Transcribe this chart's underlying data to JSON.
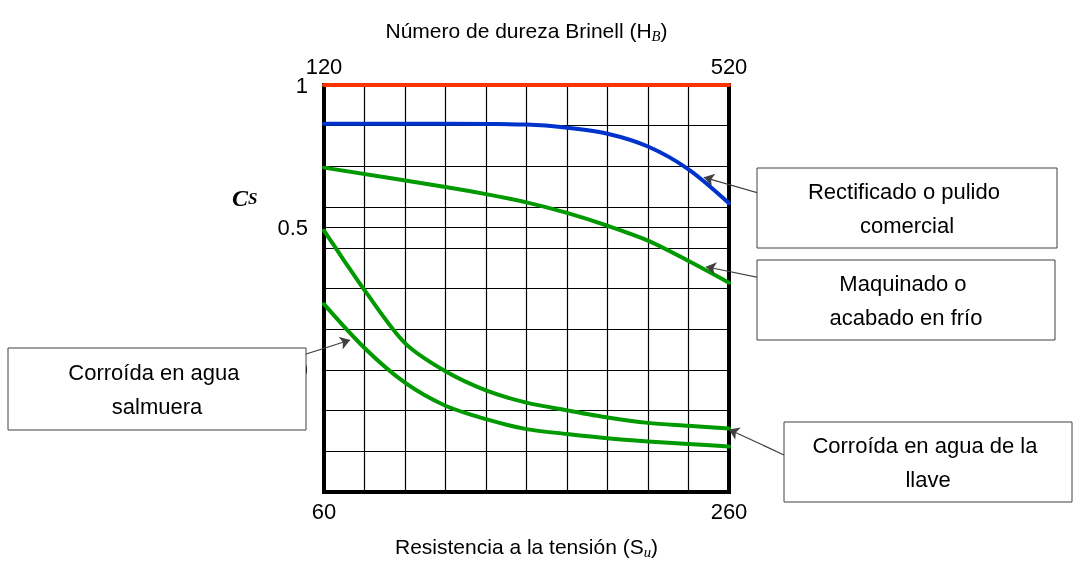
{
  "chart_data": {
    "type": "line",
    "xlabel": "Resistencia a la tensión (S$_{u}$)",
    "x2label": "Número de dureza Brinell (H$_{B}$)",
    "ylabel": "C$_{S}$",
    "xlim": [
      60,
      260
    ],
    "xticks": [
      60,
      {
        "value": 80,
        "label": null
      },
      {
        "value": 100,
        "label": null
      },
      {
        "value": 120,
        "label": null
      },
      {
        "value": 140,
        "label": null
      },
      {
        "value": 160,
        "label": null
      },
      {
        "value": 180,
        "label": null
      },
      {
        "value": 200,
        "label": null
      },
      {
        "value": 220,
        "label": null
      },
      {
        "value": 240,
        "label": null
      },
      260
    ],
    "x2lim": [
      120,
      520
    ],
    "x2ticks": [
      120,
      520
    ],
    "ylim": [
      -0.4286,
      1
    ],
    "yticks": [
      1,
      {
        "value": 0.8571,
        "label": null
      },
      {
        "value": 0.7143,
        "label": null
      },
      {
        "value": 0.5714,
        "label": null
      },
      0.5,
      {
        "value": 0.4286,
        "label": null
      },
      {
        "value": 0.2857,
        "label": null
      },
      {
        "value": 0.1429,
        "label": null
      },
      0,
      {
        "value": -0.1429,
        "label": null
      },
      {
        "value": -0.2857,
        "label": null
      }
    ],
    "grid": true,
    "marker": "none",
    "line_style": "solid",
    "series": [
      {
        "color": "#ff3300",
        "x": [
          60,
          260
        ],
        "values": [
          1,
          1
        ]
      },
      {
        "color": "#0033cc",
        "x": [
          60,
          120,
          160,
          180,
          200,
          220,
          240,
          260
        ],
        "values": [
          0.864,
          0.864,
          0.861,
          0.85,
          0.829,
          0.784,
          0.704,
          0.585
        ]
      },
      {
        "color": "#009900",
        "x": [
          60,
          120,
          140,
          160,
          180,
          200,
          220,
          238,
          260
        ],
        "values": [
          0.71,
          0.642,
          0.617,
          0.588,
          0.551,
          0.506,
          0.454,
          0.39,
          0.306
        ]
      },
      {
        "color": "#009900",
        "x": [
          60,
          70,
          80,
          100,
          120,
          140,
          160,
          180,
          200,
          220,
          240,
          260
        ],
        "values": [
          0.489,
          0.383,
          0.28,
          0.094,
          -0.005,
          -0.072,
          -0.115,
          -0.142,
          -0.167,
          -0.186,
          -0.196,
          -0.206
        ]
      },
      {
        "color": "#009900",
        "x": [
          60,
          80,
          100,
          120,
          140,
          160,
          180,
          200,
          220,
          240,
          260
        ],
        "values": [
          0.231,
          0.077,
          -0.045,
          -0.126,
          -0.173,
          -0.208,
          -0.225,
          -0.24,
          -0.251,
          -0.26,
          -0.269
        ]
      }
    ],
    "annotations": [
      {
        "text": "Rectificado o pulido comercial",
        "x": 247.6,
        "y": 0.676
      },
      {
        "text": "Maquinado o acabado en frío",
        "x": 248.6,
        "y": 0.362
      },
      {
        "text": "Corroída en agua salmuera",
        "x": 72.9,
        "y": 0.105
      },
      {
        "text": "Corroída en agua de la llave",
        "x": 260,
        "y": -0.209
      }
    ]
  }
}
